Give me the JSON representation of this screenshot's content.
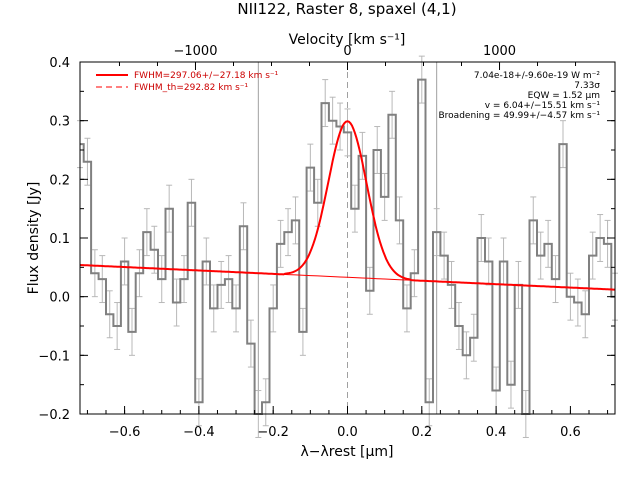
{
  "chart_data": {
    "type": "line",
    "title": "NII122, Raster 8, spaxel (4,1)",
    "xlabel": "λ−λrest [μm]",
    "ylabel": "Flux density [Jy]",
    "top_xlabel": "Velocity [km s⁻¹]",
    "xlim": [
      -0.72,
      0.72
    ],
    "ylim": [
      -0.2,
      0.4
    ],
    "x_ticks": [
      -0.6,
      -0.4,
      -0.2,
      0.0,
      0.2,
      0.4,
      0.6
    ],
    "x_tick_labels": [
      "−0.6",
      "−0.4",
      "−0.2",
      "0.0",
      "0.2",
      "0.4",
      "0.6"
    ],
    "y_ticks": [
      -0.2,
      -0.1,
      0.0,
      0.1,
      0.2,
      0.3,
      0.4
    ],
    "y_tick_labels": [
      "−0.2",
      "−0.1",
      "0.0",
      "0.1",
      "0.2",
      "0.3",
      "0.4"
    ],
    "top_ticks_kms": [
      -1000,
      0,
      1000
    ],
    "top_tick_labels": [
      "−1000",
      "0",
      "1000"
    ],
    "kms_per_micron": 2444,
    "grid": false,
    "vertical_lines": [
      -0.24,
      0.0,
      0.24
    ],
    "legend_position": "top-left",
    "annotations": [
      "7.04e-18+/-9.60e-19 W m⁻²",
      "7.33σ",
      "EQW = 1.52 μm",
      "v = 6.04+/−15.51 km s⁻¹",
      "Broadening = 49.99+/−4.57 km s⁻¹"
    ],
    "series": [
      {
        "name": "",
        "style": "step",
        "color": "#808080",
        "x": [
          -0.72,
          -0.7,
          -0.68,
          -0.66,
          -0.64,
          -0.62,
          -0.6,
          -0.58,
          -0.56,
          -0.54,
          -0.52,
          -0.5,
          -0.48,
          -0.46,
          -0.44,
          -0.42,
          -0.4,
          -0.38,
          -0.36,
          -0.34,
          -0.32,
          -0.3,
          -0.28,
          -0.26,
          -0.24,
          -0.22,
          -0.2,
          -0.18,
          -0.16,
          -0.14,
          -0.12,
          -0.1,
          -0.08,
          -0.06,
          -0.04,
          -0.02,
          0.0,
          0.02,
          0.04,
          0.06,
          0.08,
          0.1,
          0.12,
          0.14,
          0.16,
          0.18,
          0.2,
          0.22,
          0.24,
          0.26,
          0.28,
          0.3,
          0.32,
          0.34,
          0.36,
          0.38,
          0.4,
          0.42,
          0.44,
          0.46,
          0.48,
          0.5,
          0.52,
          0.54,
          0.56,
          0.58,
          0.6,
          0.62,
          0.64,
          0.66,
          0.68,
          0.7,
          0.72
        ],
        "values": [
          0.26,
          0.23,
          0.04,
          0.03,
          -0.03,
          -0.05,
          0.06,
          -0.06,
          0.04,
          0.11,
          0.08,
          0.03,
          0.15,
          -0.01,
          0.03,
          0.16,
          -0.18,
          0.06,
          -0.02,
          0.02,
          0.03,
          -0.02,
          0.12,
          -0.08,
          -0.2,
          -0.18,
          -0.02,
          0.09,
          0.11,
          0.13,
          -0.06,
          0.22,
          0.16,
          0.33,
          0.3,
          0.29,
          0.28,
          0.15,
          0.24,
          0.01,
          0.25,
          0.17,
          0.31,
          0.13,
          -0.02,
          0.04,
          0.37,
          -0.18,
          0.11,
          0.07,
          0.02,
          -0.05,
          -0.1,
          -0.07,
          0.1,
          0.06,
          -0.16,
          0.06,
          -0.15,
          0.02,
          -0.2,
          0.13,
          0.07,
          0.09,
          0.03,
          0.26,
          0.0,
          -0.01,
          -0.03,
          0.07,
          0.1,
          0.09,
          0.0
        ],
        "errors": [
          0.04,
          0.04,
          0.04,
          0.04,
          0.04,
          0.04,
          0.04,
          0.04,
          0.04,
          0.04,
          0.04,
          0.04,
          0.04,
          0.04,
          0.04,
          0.04,
          0.04,
          0.04,
          0.04,
          0.04,
          0.04,
          0.04,
          0.04,
          0.04,
          0.04,
          0.04,
          0.04,
          0.04,
          0.04,
          0.04,
          0.04,
          0.04,
          0.04,
          0.04,
          0.04,
          0.04,
          0.04,
          0.04,
          0.04,
          0.04,
          0.04,
          0.04,
          0.04,
          0.04,
          0.04,
          0.04,
          0.04,
          0.04,
          0.04,
          0.04,
          0.04,
          0.04,
          0.04,
          0.04,
          0.04,
          0.04,
          0.04,
          0.04,
          0.04,
          0.04,
          0.04,
          0.04,
          0.04,
          0.04,
          0.04,
          0.04,
          0.04,
          0.04,
          0.04,
          0.04,
          0.04,
          0.04,
          0.04
        ]
      },
      {
        "name": "FWHM=297.06+/−27.18 km s⁻¹",
        "style": "solid",
        "color": "#ff0000",
        "model": {
          "baseline_start": 0.054,
          "baseline_end": 0.012,
          "amplitude": 0.266,
          "center": 0.0,
          "sigma": 0.0515,
          "xmin": -0.17,
          "xmax": 0.17
        }
      },
      {
        "name": "FWHM_th=292.82 km s⁻¹",
        "style": "dashed",
        "color": "#ff0000"
      }
    ]
  }
}
